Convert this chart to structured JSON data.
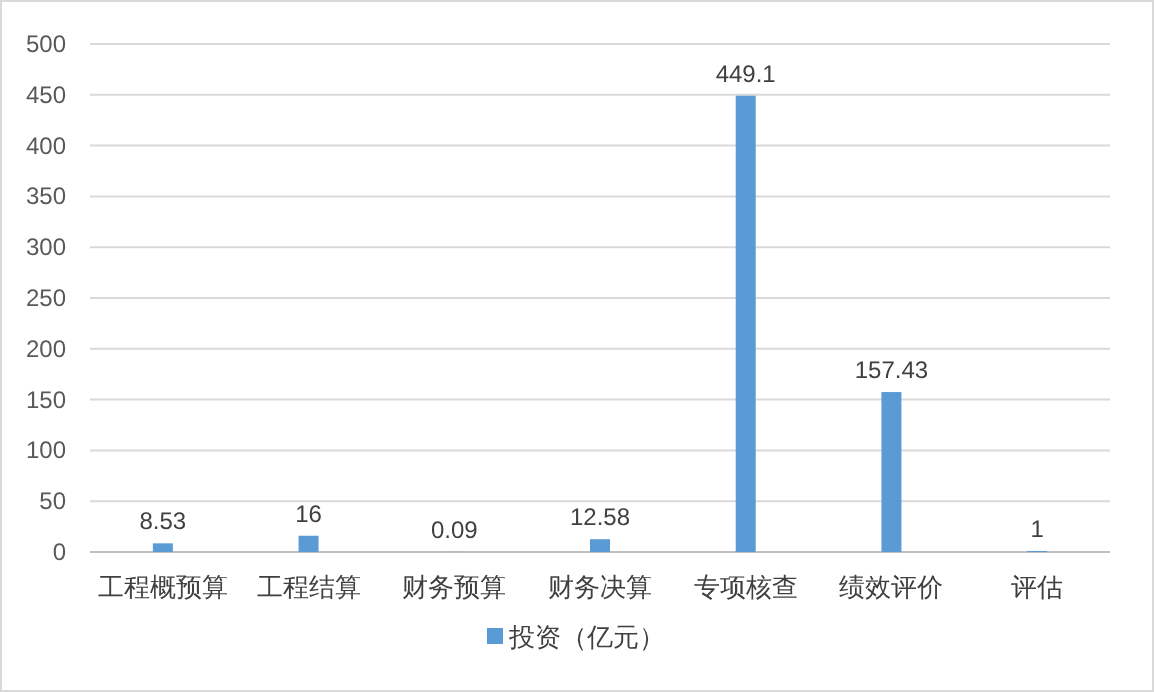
{
  "chart_data": {
    "type": "bar",
    "categories": [
      "工程概预算",
      "工程结算",
      "财务预算",
      "财务决算",
      "专项核查",
      "绩效评价",
      "评估"
    ],
    "series": [
      {
        "name": "投资（亿元）",
        "color": "#5b9bd5",
        "values": [
          8.53,
          16,
          0.09,
          12.58,
          449.1,
          157.43,
          1
        ]
      }
    ],
    "ylim": [
      0,
      500
    ],
    "yticks": [
      0,
      50,
      100,
      150,
      200,
      250,
      300,
      350,
      400,
      450,
      500
    ],
    "grid": "y",
    "legend": "bottom",
    "data_labels": true
  }
}
